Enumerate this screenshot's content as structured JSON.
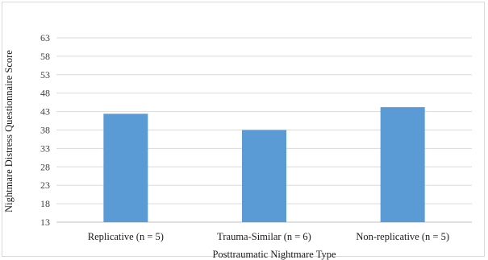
{
  "chart_data": {
    "type": "bar",
    "title": "",
    "xlabel": "Posttraumatic Nightmare Type",
    "ylabel": "Nightmare Distress Questionnaire Score",
    "categories": [
      "Replicative (n = 5)",
      "Trauma-Similar (n = 6)",
      "Non-replicative (n = 5)"
    ],
    "values": [
      42.4,
      38.0,
      44.2
    ],
    "ylim": [
      13,
      63
    ],
    "yticks": [
      "13",
      "18",
      "23",
      "28",
      "33",
      "38",
      "43",
      "48",
      "53",
      "58",
      "63"
    ],
    "grid": true,
    "bar_color": "#5b9bd5",
    "grid_color": "#d9d9d9"
  }
}
